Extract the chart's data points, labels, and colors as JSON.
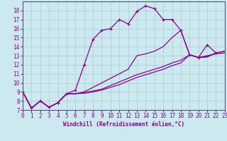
{
  "xlabel": "Windchill (Refroidissement éolien,°C)",
  "xlim": [
    0,
    23
  ],
  "ylim": [
    7,
    19
  ],
  "xticks": [
    0,
    1,
    2,
    3,
    4,
    5,
    6,
    7,
    8,
    9,
    10,
    11,
    12,
    13,
    14,
    15,
    16,
    17,
    18,
    19,
    20,
    21,
    22,
    23
  ],
  "yticks": [
    7,
    8,
    9,
    10,
    11,
    12,
    13,
    14,
    15,
    16,
    17,
    18
  ],
  "bg_color": "#cde9f0",
  "line_color": "#8b008b",
  "grid_color": "#b0c8d0",
  "curve1_x": [
    0,
    1,
    2,
    3,
    4,
    5,
    6,
    7,
    8,
    9,
    10,
    11,
    12,
    13,
    14,
    15,
    16,
    17,
    18,
    19,
    20,
    21,
    22
  ],
  "curve1_y": [
    9.0,
    7.2,
    8.0,
    7.3,
    7.8,
    8.8,
    9.2,
    12.0,
    14.8,
    15.8,
    16.0,
    17.0,
    16.5,
    17.9,
    18.5,
    18.2,
    17.0,
    17.0,
    15.8,
    13.1,
    12.8,
    14.2,
    13.3
  ],
  "curve2_x": [
    0,
    1,
    2,
    3,
    4,
    5,
    6,
    7,
    8,
    9,
    10,
    11,
    12,
    13,
    14,
    15,
    16,
    17,
    18,
    19,
    20,
    21,
    22,
    23
  ],
  "curve2_y": [
    9.0,
    7.2,
    8.0,
    7.3,
    7.8,
    8.8,
    8.8,
    9.0,
    9.5,
    10.0,
    10.5,
    11.0,
    11.5,
    13.0,
    13.2,
    13.5,
    14.0,
    15.0,
    15.8,
    13.1,
    12.8,
    13.0,
    13.2,
    13.3
  ],
  "curve3_x": [
    0,
    1,
    2,
    3,
    4,
    5,
    6,
    7,
    8,
    9,
    10,
    11,
    12,
    13,
    14,
    15,
    16,
    17,
    18,
    19,
    20,
    21,
    22,
    23
  ],
  "curve3_y": [
    9.0,
    7.2,
    8.0,
    7.3,
    7.8,
    8.8,
    8.8,
    8.9,
    9.1,
    9.3,
    9.7,
    10.1,
    10.5,
    10.9,
    11.2,
    11.5,
    11.8,
    12.2,
    12.5,
    13.1,
    12.8,
    12.9,
    13.3,
    13.5
  ],
  "curve4_x": [
    0,
    1,
    2,
    3,
    4,
    5,
    6,
    7,
    8,
    9,
    10,
    11,
    12,
    13,
    14,
    15,
    16,
    17,
    18,
    19,
    20,
    21,
    22,
    23
  ],
  "curve4_y": [
    9.0,
    7.2,
    8.0,
    7.3,
    7.8,
    8.8,
    8.8,
    8.85,
    9.0,
    9.2,
    9.5,
    9.8,
    10.2,
    10.6,
    10.9,
    11.2,
    11.5,
    11.9,
    12.2,
    13.1,
    12.8,
    12.85,
    13.3,
    13.5
  ]
}
